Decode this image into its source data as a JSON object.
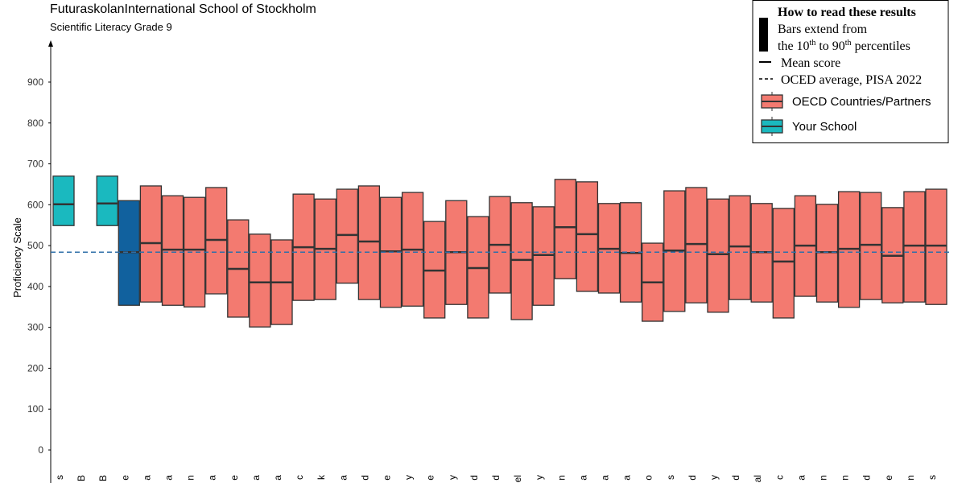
{
  "chart_data": {
    "type": "range_bar",
    "title": "FuturaskolanInternational School of Stockholm",
    "subtitle": "Scientific Literacy Grade 9",
    "y_label": "Proficiency Scale",
    "categories": [
      "s",
      "B",
      "B",
      "e",
      "a",
      "a",
      "n",
      "a",
      "e",
      "a",
      "a",
      "c",
      "k",
      "a",
      "d",
      "e",
      "y",
      "e",
      "y",
      "d",
      "d",
      "el",
      "y",
      "n",
      "a",
      "a",
      "a",
      "o",
      "s",
      "d",
      "y",
      "d",
      "al",
      "c",
      "a",
      "n",
      "n",
      "d",
      "e",
      "n",
      "s"
    ],
    "p10": [
      549,
      null,
      549,
      354,
      362,
      354,
      350,
      382,
      325,
      301,
      307,
      366,
      368,
      408,
      368,
      349,
      352,
      323,
      356,
      323,
      384,
      319,
      354,
      419,
      388,
      384,
      362,
      315,
      339,
      360,
      337,
      368,
      362,
      323,
      376,
      362,
      349,
      368,
      360,
      362,
      356
    ],
    "mean": [
      601,
      null,
      603,
      484,
      506,
      490,
      490,
      514,
      443,
      410,
      410,
      496,
      492,
      526,
      510,
      486,
      490,
      439,
      484,
      445,
      502,
      465,
      477,
      545,
      528,
      492,
      482,
      410,
      488,
      504,
      479,
      498,
      484,
      461,
      500,
      484,
      492,
      502,
      475,
      500,
      500
    ],
    "p90": [
      670,
      null,
      670,
      610,
      646,
      622,
      618,
      642,
      563,
      528,
      514,
      626,
      614,
      638,
      646,
      618,
      630,
      559,
      610,
      571,
      620,
      605,
      595,
      662,
      656,
      603,
      605,
      506,
      634,
      642,
      614,
      622,
      603,
      591,
      622,
      601,
      632,
      630,
      593,
      632,
      638
    ],
    "colors": [
      "#1ab9bf",
      null,
      "#1ab9bf",
      "#11619e",
      "#f37a70",
      "#f37a70",
      "#f37a70",
      "#f37a70",
      "#f37a70",
      "#f37a70",
      "#f37a70",
      "#f37a70",
      "#f37a70",
      "#f37a70",
      "#f37a70",
      "#f37a70",
      "#f37a70",
      "#f37a70",
      "#f37a70",
      "#f37a70",
      "#f37a70",
      "#f37a70",
      "#f37a70",
      "#f37a70",
      "#f37a70",
      "#f37a70",
      "#f37a70",
      "#f37a70",
      "#f37a70",
      "#f37a70",
      "#f37a70",
      "#f37a70",
      "#f37a70",
      "#f37a70",
      "#f37a70",
      "#f37a70",
      "#f37a70",
      "#f37a70",
      "#f37a70",
      "#f37a70",
      "#f37a70"
    ],
    "oecd_average": 484,
    "ylim": [
      -50,
      1000
    ],
    "yticks": [
      0,
      100,
      200,
      300,
      400,
      500,
      600,
      700,
      800,
      900
    ],
    "legend": {
      "title": "How to read these results",
      "line1": "Bars extend from",
      "line2": [
        "the 10",
        "th",
        " to 90",
        "th",
        " percentiles"
      ],
      "mean": "Mean score",
      "average": "OCED average, PISA 2022",
      "series": [
        {
          "name": "OECD Countries/Partners",
          "color": "#f37a70"
        },
        {
          "name": "Your School",
          "color": "#1ab9bf"
        }
      ]
    }
  }
}
